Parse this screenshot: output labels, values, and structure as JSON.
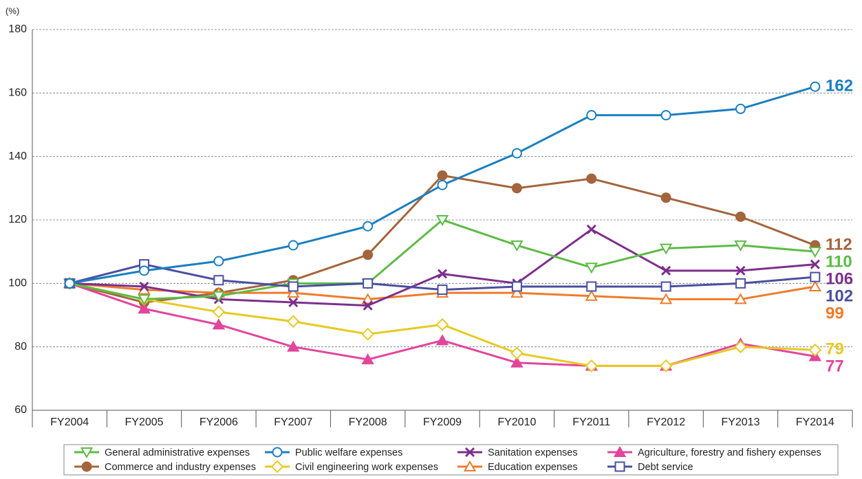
{
  "chart_data": {
    "type": "line",
    "y_unit": "(%)",
    "categories": [
      "FY2004",
      "FY2005",
      "FY2006",
      "FY2007",
      "FY2008",
      "FY2009",
      "FY2010",
      "FY2011",
      "FY2012",
      "FY2013",
      "FY2014"
    ],
    "ylim": [
      60,
      180
    ],
    "yticks": [
      60,
      80,
      100,
      120,
      140,
      160,
      180
    ],
    "grid": true,
    "series": [
      {
        "name": "General administrative expenses",
        "color": "#5dbb46",
        "marker": "triangle-down",
        "filled": false,
        "values": [
          100,
          95,
          96,
          100,
          100,
          120,
          112,
          105,
          111,
          112,
          110
        ]
      },
      {
        "name": "Public welfare expenses",
        "color": "#1b7fc1",
        "marker": "circle",
        "filled": false,
        "values": [
          100,
          104,
          107,
          112,
          118,
          131,
          141,
          153,
          153,
          155,
          162
        ]
      },
      {
        "name": "Sanitation expenses",
        "color": "#7d2f8c",
        "marker": "cross",
        "filled": true,
        "values": [
          100,
          99,
          95,
          94,
          93,
          103,
          100,
          117,
          104,
          104,
          106
        ]
      },
      {
        "name": "Agriculture, forestry and fishery expenses",
        "color": "#e2469b",
        "marker": "triangle-up",
        "filled": true,
        "values": [
          100,
          92,
          87,
          80,
          76,
          82,
          75,
          74,
          74,
          81,
          77
        ]
      },
      {
        "name": "Commerce and industry expenses",
        "color": "#a4643c",
        "marker": "circle",
        "filled": true,
        "values": [
          100,
          94,
          97,
          101,
          109,
          134,
          130,
          133,
          127,
          121,
          112
        ]
      },
      {
        "name": "Civil engineering work expenses",
        "color": "#e8c921",
        "marker": "diamond",
        "filled": false,
        "values": [
          100,
          95,
          91,
          88,
          84,
          87,
          78,
          74,
          74,
          80,
          79
        ]
      },
      {
        "name": "Education expenses",
        "color": "#ef7b2b",
        "marker": "triangle-up",
        "filled": false,
        "values": [
          100,
          98,
          97,
          97,
          95,
          97,
          97,
          96,
          95,
          95,
          99
        ]
      },
      {
        "name": "Debt service",
        "color": "#4a4f9f",
        "marker": "square",
        "filled": false,
        "values": [
          100,
          106,
          101,
          99,
          100,
          98,
          99,
          99,
          99,
          100,
          102
        ]
      }
    ]
  }
}
